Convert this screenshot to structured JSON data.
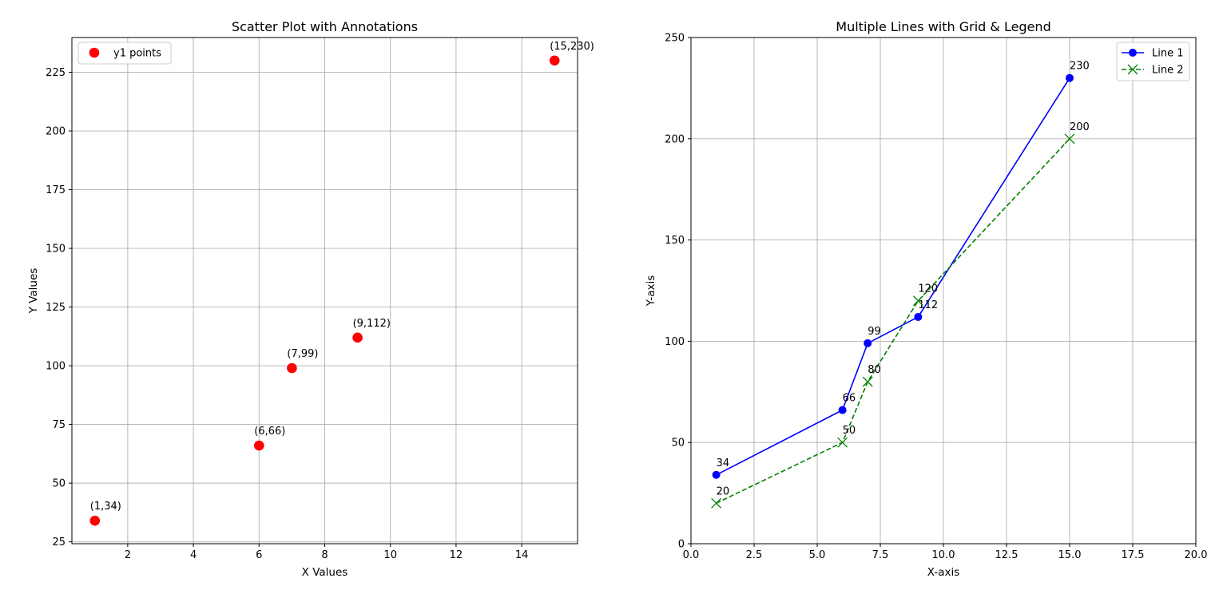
{
  "chart_data": [
    {
      "type": "scatter",
      "title": "Scatter Plot with Annotations",
      "xlabel": "X Values",
      "ylabel": "Y Values",
      "xlim": [
        0.3,
        15.7
      ],
      "ylim": [
        24.2,
        239.8
      ],
      "xticks": [
        2,
        4,
        6,
        8,
        10,
        12,
        14
      ],
      "yticks": [
        25,
        50,
        75,
        100,
        125,
        150,
        175,
        200,
        225
      ],
      "grid": true,
      "legend_position": "upper-left",
      "series": [
        {
          "name": "y1 points",
          "color": "#ff0000",
          "marker": "circle",
          "x": [
            1,
            6,
            7,
            9,
            15
          ],
          "y": [
            34,
            66,
            99,
            112,
            230
          ]
        }
      ],
      "annotations": [
        {
          "x": 1,
          "y": 34,
          "text": "(1,34)"
        },
        {
          "x": 6,
          "y": 66,
          "text": "(6,66)"
        },
        {
          "x": 7,
          "y": 99,
          "text": "(7,99)"
        },
        {
          "x": 9,
          "y": 112,
          "text": "(9,112)"
        },
        {
          "x": 15,
          "y": 230,
          "text": "(15,230)"
        }
      ]
    },
    {
      "type": "line",
      "title": "Multiple Lines with Grid & Legend",
      "xlabel": "X-axis",
      "ylabel": "Y-axis",
      "xlim": [
        0,
        20
      ],
      "ylim": [
        0,
        250
      ],
      "xticks": [
        0.0,
        2.5,
        5.0,
        7.5,
        10.0,
        12.5,
        15.0,
        17.5,
        20.0
      ],
      "xtick_labels": [
        "0.0",
        "2.5",
        "5.0",
        "7.5",
        "10.0",
        "12.5",
        "15.0",
        "17.5",
        "20.0"
      ],
      "yticks": [
        0,
        50,
        100,
        150,
        200,
        250
      ],
      "grid": true,
      "legend_position": "upper-right",
      "series": [
        {
          "name": "Line 1",
          "color": "#0000ff",
          "marker": "circle",
          "linestyle": "solid",
          "x": [
            1,
            6,
            7,
            9,
            15
          ],
          "y": [
            34,
            66,
            99,
            112,
            230
          ],
          "labels": [
            "34",
            "66",
            "99",
            "112",
            "230"
          ]
        },
        {
          "name": "Line 2",
          "color": "#008000",
          "marker": "x",
          "linestyle": "dashed",
          "x": [
            1,
            6,
            7,
            9,
            15
          ],
          "y": [
            20,
            50,
            80,
            120,
            200
          ],
          "labels": [
            "20",
            "50",
            "80",
            "120",
            "200"
          ]
        }
      ]
    }
  ]
}
